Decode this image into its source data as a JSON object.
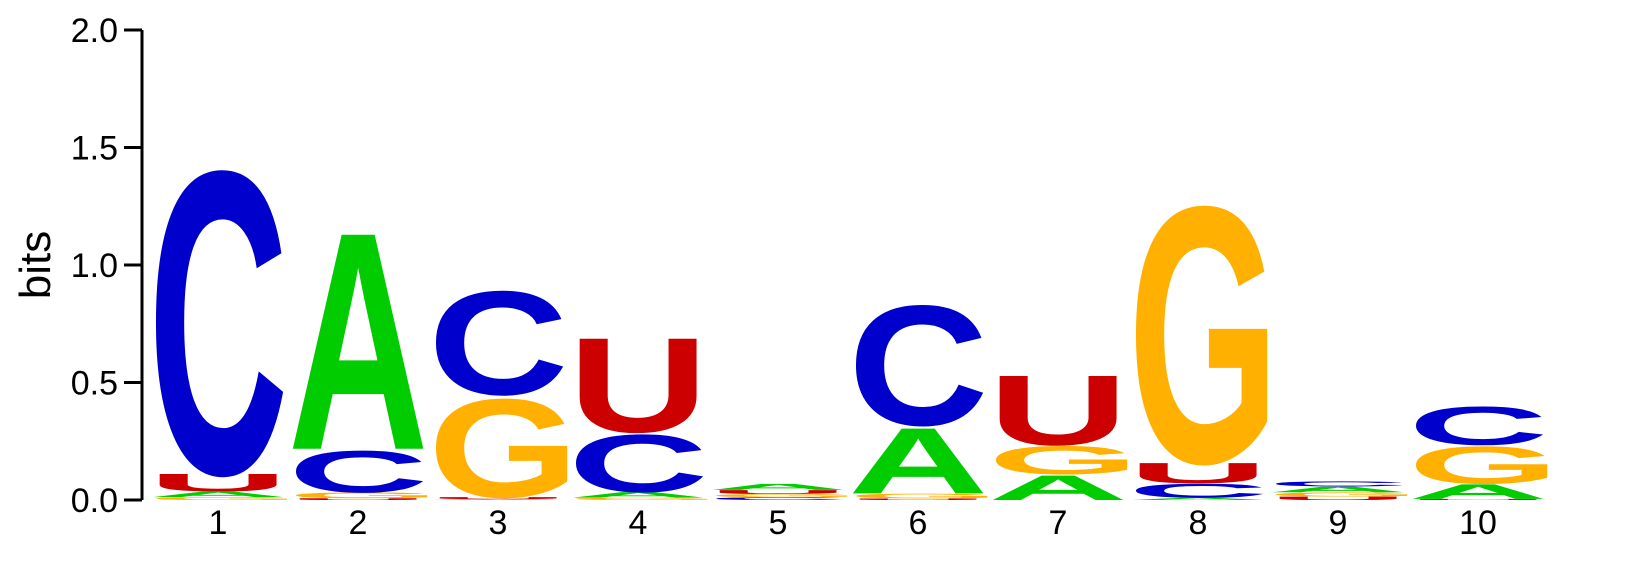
{
  "chart_data": {
    "type": "sequence-logo",
    "ylabel": "bits",
    "ylim": [
      0,
      2
    ],
    "yticks": [
      "0.0",
      "0.5",
      "1.0",
      "1.5",
      "2.0"
    ],
    "positions": [
      "1",
      "2",
      "3",
      "4",
      "5",
      "6",
      "7",
      "8",
      "9",
      "10"
    ],
    "colors": {
      "A": "#00cc00",
      "C": "#0000cc",
      "G": "#ffb000",
      "U": "#cc0000"
    },
    "stacks": [
      [
        {
          "letter": "G",
          "height": 0.012
        },
        {
          "letter": "A",
          "height": 0.025
        },
        {
          "letter": "U",
          "height": 0.078
        },
        {
          "letter": "C",
          "height": 1.345
        }
      ],
      [
        {
          "letter": "U",
          "height": 0.008
        },
        {
          "letter": "G",
          "height": 0.025
        },
        {
          "letter": "C",
          "height": 0.185
        },
        {
          "letter": "A",
          "height": 0.965
        }
      ],
      [
        {
          "letter": "A",
          "height": 0.004
        },
        {
          "letter": "U",
          "height": 0.009
        },
        {
          "letter": "G",
          "height": 0.437
        },
        {
          "letter": "C",
          "height": 0.46
        }
      ],
      [
        {
          "letter": "G",
          "height": 0.01
        },
        {
          "letter": "A",
          "height": 0.025
        },
        {
          "letter": "C",
          "height": 0.255
        },
        {
          "letter": "U",
          "height": 0.42
        }
      ],
      [
        {
          "letter": "C",
          "height": 0.012
        },
        {
          "letter": "G",
          "height": 0.014
        },
        {
          "letter": "U",
          "height": 0.017
        },
        {
          "letter": "A",
          "height": 0.027
        }
      ],
      [
        {
          "letter": "U",
          "height": 0.007
        },
        {
          "letter": "G",
          "height": 0.021
        },
        {
          "letter": "A",
          "height": 0.292
        },
        {
          "letter": "C",
          "height": 0.532
        }
      ],
      [
        {
          "letter": "A",
          "height": 0.11
        },
        {
          "letter": "G",
          "height": 0.125
        },
        {
          "letter": "U",
          "height": 0.31
        }
      ],
      [
        {
          "letter": "A",
          "height": 0.01
        },
        {
          "letter": "C",
          "height": 0.062
        },
        {
          "letter": "U",
          "height": 0.09
        },
        {
          "letter": "G",
          "height": 1.138
        }
      ],
      [
        {
          "letter": "U",
          "height": 0.015
        },
        {
          "letter": "G",
          "height": 0.018
        },
        {
          "letter": "A",
          "height": 0.025
        },
        {
          "letter": "C",
          "height": 0.022
        }
      ],
      [
        {
          "letter": "U",
          "height": 0.005
        },
        {
          "letter": "A",
          "height": 0.065
        },
        {
          "letter": "G",
          "height": 0.165
        },
        {
          "letter": "C",
          "height": 0.17
        }
      ]
    ]
  }
}
